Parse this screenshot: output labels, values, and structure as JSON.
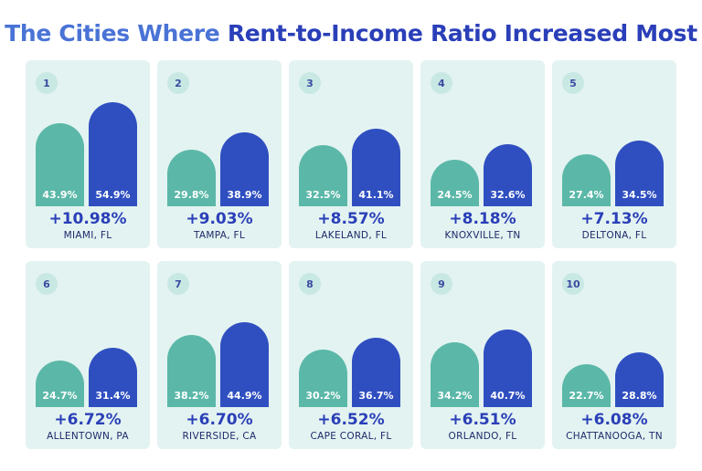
{
  "header": {
    "title_part1": "The Cities Where",
    "title_part2": "Rent-to-Income Ratio Increased Most"
  },
  "colors": {
    "earlier_bar": "#5bb8a8",
    "later_bar": "#2f4fc0",
    "card_bg": "#e3f3f1"
  },
  "chart_data": {
    "type": "bar",
    "title": "The Cities Where Rent-to-Income Ratio Increased Most",
    "categories": [
      "MIAMI, FL",
      "TAMPA, FL",
      "LAKELAND, FL",
      "KNOXVILLE, TN",
      "DELTONA, FL",
      "ALLENTOWN, PA",
      "RIVERSIDE, CA",
      "CAPE CORAL, FL",
      "ORLANDO, FL",
      "CHATTANOOGA, TN"
    ],
    "series": [
      {
        "values": [
          43.9,
          29.8,
          32.5,
          24.5,
          27.4,
          24.7,
          38.2,
          30.2,
          34.2,
          22.7
        ]
      },
      {
        "values": [
          54.9,
          38.9,
          41.1,
          32.6,
          34.5,
          31.4,
          44.9,
          36.7,
          40.7,
          28.8
        ]
      }
    ],
    "items": [
      {
        "rank": "1",
        "city": "MIAMI, FL",
        "a": 43.9,
        "a_label": "43.9%",
        "b": 54.9,
        "b_label": "54.9%",
        "change": "+10.98%"
      },
      {
        "rank": "2",
        "city": "TAMPA, FL",
        "a": 29.8,
        "a_label": "29.8%",
        "b": 38.9,
        "b_label": "38.9%",
        "change": "+9.03%"
      },
      {
        "rank": "3",
        "city": "LAKELAND, FL",
        "a": 32.5,
        "a_label": "32.5%",
        "b": 41.1,
        "b_label": "41.1%",
        "change": "+8.57%"
      },
      {
        "rank": "4",
        "city": "KNOXVILLE, TN",
        "a": 24.5,
        "a_label": "24.5%",
        "b": 32.6,
        "b_label": "32.6%",
        "change": "+8.18%"
      },
      {
        "rank": "5",
        "city": "DELTONA, FL",
        "a": 27.4,
        "a_label": "27.4%",
        "b": 34.5,
        "b_label": "34.5%",
        "change": "+7.13%"
      },
      {
        "rank": "6",
        "city": "ALLENTOWN, PA",
        "a": 24.7,
        "a_label": "24.7%",
        "b": 31.4,
        "b_label": "31.4%",
        "change": "+6.72%"
      },
      {
        "rank": "7",
        "city": "RIVERSIDE, CA",
        "a": 38.2,
        "a_label": "38.2%",
        "b": 44.9,
        "b_label": "44.9%",
        "change": "+6.70%"
      },
      {
        "rank": "8",
        "city": "CAPE CORAL, FL",
        "a": 30.2,
        "a_label": "30.2%",
        "b": 36.7,
        "b_label": "36.7%",
        "change": "+6.52%"
      },
      {
        "rank": "9",
        "city": "ORLANDO, FL",
        "a": 34.2,
        "a_label": "34.2%",
        "b": 40.7,
        "b_label": "40.7%",
        "change": "+6.51%"
      },
      {
        "rank": "10",
        "city": "CHATTANOOGA, TN",
        "a": 22.7,
        "a_label": "22.7%",
        "b": 28.8,
        "b_label": "28.8%",
        "change": "+6.08%"
      }
    ]
  }
}
